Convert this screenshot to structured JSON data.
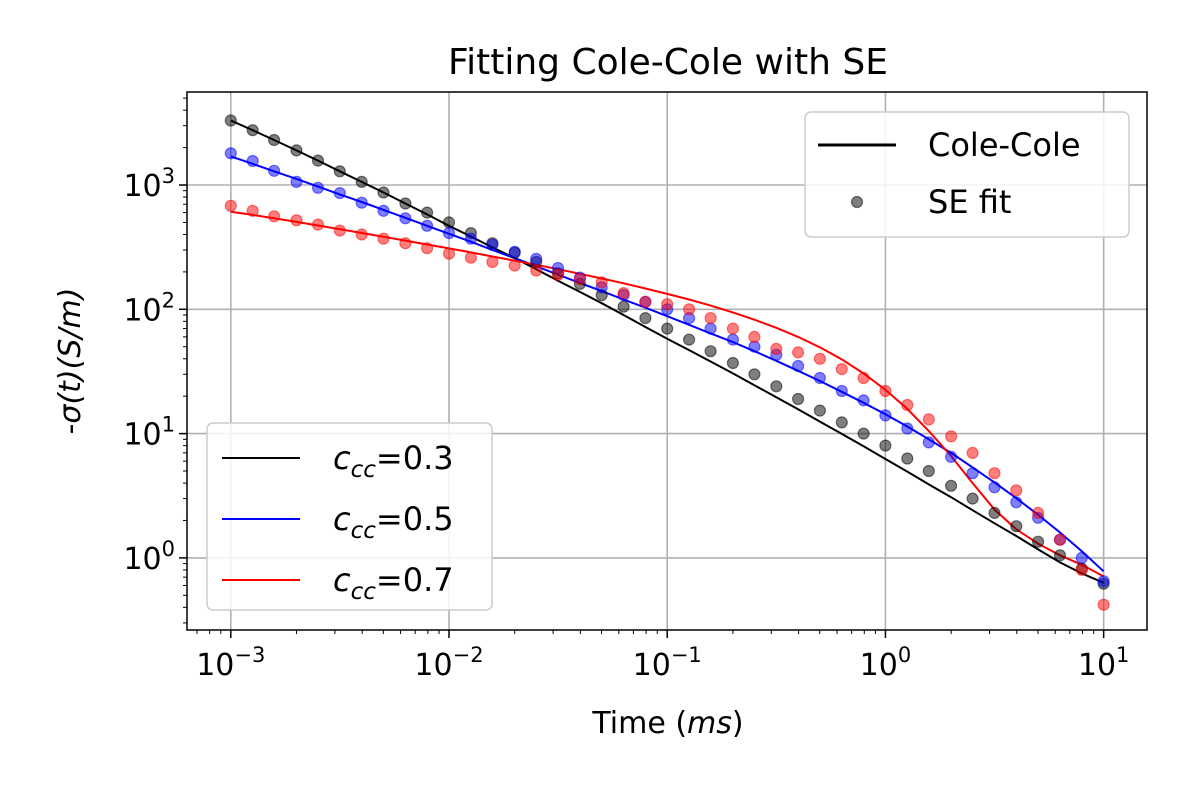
{
  "chart_data": {
    "type": "line",
    "title": "Fitting Cole-Cole with SE",
    "xlabel": {
      "prefix": "Time (",
      "italic": "ms",
      "suffix": ")"
    },
    "ylabel": {
      "prefix": "-",
      "italic": "σ(t)(S/m)",
      "suffix": ""
    },
    "xscale": "log",
    "yscale": "log",
    "xlim": [
      0.00063,
      15.8
    ],
    "ylim": [
      0.263,
      5600
    ],
    "grid": true,
    "x_ticks": [
      {
        "value": 0.001,
        "base": "10",
        "exp": "−3"
      },
      {
        "value": 0.01,
        "base": "10",
        "exp": "−2"
      },
      {
        "value": 0.1,
        "base": "10",
        "exp": "−1"
      },
      {
        "value": 1,
        "base": "10",
        "exp": "0"
      },
      {
        "value": 10,
        "base": "10",
        "exp": "1"
      }
    ],
    "y_ticks": [
      {
        "value": 1,
        "base": "10",
        "exp": "0"
      },
      {
        "value": 10,
        "base": "10",
        "exp": "1"
      },
      {
        "value": 100,
        "base": "10",
        "exp": "2"
      },
      {
        "value": 1000,
        "base": "10",
        "exp": "3"
      }
    ],
    "legend_style": {
      "placement": "top-right",
      "entries": [
        {
          "label": "Cole-Cole",
          "kind": "line",
          "color": "#000000"
        },
        {
          "label": "SE fit",
          "kind": "marker",
          "color": "#000000"
        }
      ]
    },
    "legend_series": {
      "placement": "bottom-left",
      "entries": [
        {
          "label_main": "c",
          "label_sub": "cc",
          "label_value": "=0.3",
          "color": "#000000"
        },
        {
          "label_main": "c",
          "label_sub": "cc",
          "label_value": "=0.5",
          "color": "#0000ff"
        },
        {
          "label_main": "c",
          "label_sub": "cc",
          "label_value": "=0.7",
          "color": "#ff0000"
        }
      ]
    },
    "x": [
      0.001,
      0.00126,
      0.00158,
      0.002,
      0.00251,
      0.00316,
      0.00398,
      0.00501,
      0.00631,
      0.00794,
      0.01,
      0.0126,
      0.0158,
      0.02,
      0.0251,
      0.0316,
      0.0398,
      0.0501,
      0.0631,
      0.0794,
      0.1,
      0.126,
      0.158,
      0.2,
      0.251,
      0.316,
      0.398,
      0.501,
      0.631,
      0.794,
      1,
      1.26,
      1.58,
      2,
      2.51,
      3.16,
      3.98,
      5.01,
      6.31,
      7.94,
      10
    ],
    "series": [
      {
        "name": "c_cc=0.3",
        "color": "#000000",
        "line": [
          3300,
          2760,
          2300,
          1900,
          1570,
          1290,
          1060,
          870,
          710,
          580,
          470,
          385,
          315,
          258,
          210,
          170,
          138,
          112,
          90,
          72,
          58,
          47,
          38,
          30.5,
          24.5,
          19.6,
          15.7,
          12.5,
          9.95,
          7.9,
          6.25,
          4.95,
          3.9,
          3.08,
          2.42,
          1.9,
          1.5,
          1.17,
          0.92,
          0.75,
          0.63
        ],
        "fit": [
          3300,
          2760,
          2300,
          1900,
          1570,
          1290,
          1060,
          870,
          710,
          600,
          500,
          410,
          340,
          285,
          240,
          195,
          160,
          130,
          105,
          85,
          70,
          57,
          46,
          37,
          30,
          24,
          19,
          15.3,
          12.3,
          10,
          8,
          6.3,
          5,
          3.8,
          3,
          2.3,
          1.8,
          1.35,
          1.05,
          0.82,
          0.62
        ]
      },
      {
        "name": "c_cc=0.5",
        "color": "#0000ff",
        "line": [
          1700,
          1480,
          1290,
          1120,
          970,
          840,
          730,
          630,
          545,
          470,
          405,
          350,
          300,
          258,
          222,
          190,
          163,
          140,
          120,
          103,
          88,
          75,
          64,
          54.5,
          46,
          38.5,
          32,
          26.5,
          21.7,
          17.7,
          14.3,
          11.4,
          9,
          7,
          5.35,
          4.05,
          3.02,
          2.22,
          1.6,
          1.13,
          0.78
        ],
        "fit": [
          1800,
          1560,
          1300,
          1060,
          950,
          860,
          720,
          620,
          540,
          470,
          410,
          370,
          330,
          290,
          255,
          215,
          180,
          150,
          130,
          115,
          100,
          85,
          70,
          57,
          50,
          43,
          35,
          28,
          22,
          18.5,
          14,
          11,
          8.5,
          6.5,
          4.8,
          3.7,
          2.8,
          2.1,
          1.4,
          1,
          0.65
        ]
      },
      {
        "name": "c_cc=0.7",
        "color": "#ff0000",
        "line": [
          610,
          575,
          540,
          505,
          472,
          441,
          411,
          383,
          357,
          332,
          309,
          287,
          266,
          246,
          228,
          210,
          193,
          177,
          162,
          147,
          133,
          120,
          107,
          94.5,
          82.5,
          71,
          60,
          49.5,
          39.5,
          30.5,
          22.5,
          15.8,
          10.5,
          6.6,
          4,
          2.45,
          1.7,
          1.3,
          1.05,
          0.88,
          0.71
        ],
        "fit": [
          680,
          620,
          560,
          520,
          480,
          430,
          400,
          370,
          340,
          310,
          280,
          260,
          240,
          225,
          205,
          190,
          175,
          165,
          135,
          115,
          110,
          100,
          85,
          70,
          60,
          48,
          45,
          40,
          33,
          28,
          22,
          17,
          13,
          9.5,
          7,
          4.8,
          3.5,
          2.3,
          1.4,
          0.8,
          0.42
        ]
      }
    ]
  }
}
